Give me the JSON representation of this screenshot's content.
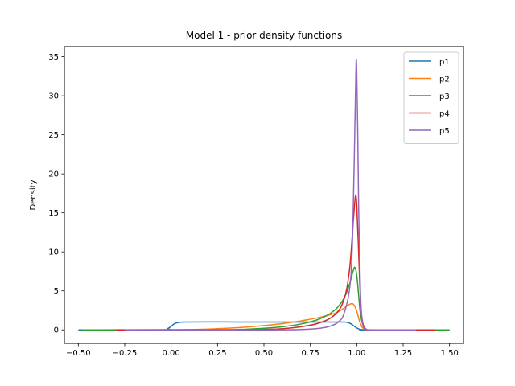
{
  "chart_data": {
    "type": "line",
    "title": "Model 1 - prior density functions",
    "xlabel": "",
    "ylabel": "Density",
    "xlim": [
      -0.575,
      1.575
    ],
    "ylim": [
      -1.73,
      36.3
    ],
    "xticks": [
      -0.5,
      -0.25,
      0.0,
      0.25,
      0.5,
      0.75,
      1.0,
      1.25,
      1.5
    ],
    "xtick_labels": [
      "−0.50",
      "−0.25",
      "0.00",
      "0.25",
      "0.50",
      "0.75",
      "1.00",
      "1.25",
      "1.50"
    ],
    "yticks": [
      0,
      5,
      10,
      15,
      20,
      25,
      30,
      35
    ],
    "ytick_labels": [
      "0",
      "5",
      "10",
      "15",
      "20",
      "25",
      "30",
      "35"
    ],
    "grid": false,
    "legend_position": "top-right",
    "series": [
      {
        "name": "p1",
        "color": "#1f77b4",
        "points": [
          [
            -0.5,
            0.0
          ],
          [
            -0.05,
            0.0
          ],
          [
            -0.02,
            0.15
          ],
          [
            0.0,
            0.45
          ],
          [
            0.02,
            0.82
          ],
          [
            0.05,
            0.98
          ],
          [
            0.1,
            1.0
          ],
          [
            0.2,
            1.02
          ],
          [
            0.3,
            1.01
          ],
          [
            0.4,
            1.0
          ],
          [
            0.5,
            1.0
          ],
          [
            0.6,
            1.0
          ],
          [
            0.7,
            1.0
          ],
          [
            0.8,
            1.0
          ],
          [
            0.9,
            1.0
          ],
          [
            0.93,
            1.0
          ],
          [
            0.95,
            0.95
          ],
          [
            0.97,
            0.75
          ],
          [
            0.99,
            0.4
          ],
          [
            1.01,
            0.12
          ],
          [
            1.03,
            0.02
          ],
          [
            1.06,
            0.0
          ],
          [
            1.5,
            0.0
          ]
        ]
      },
      {
        "name": "p2",
        "color": "#ff7f0e",
        "points": [
          [
            -0.46,
            0.0
          ],
          [
            0.0,
            0.02
          ],
          [
            0.2,
            0.1
          ],
          [
            0.4,
            0.35
          ],
          [
            0.5,
            0.55
          ],
          [
            0.6,
            0.8
          ],
          [
            0.7,
            1.15
          ],
          [
            0.8,
            1.6
          ],
          [
            0.88,
            2.1
          ],
          [
            0.92,
            2.6
          ],
          [
            0.95,
            3.1
          ],
          [
            0.97,
            3.35
          ],
          [
            0.985,
            3.2
          ],
          [
            1.0,
            2.4
          ],
          [
            1.015,
            1.1
          ],
          [
            1.03,
            0.3
          ],
          [
            1.05,
            0.05
          ],
          [
            1.1,
            0.0
          ],
          [
            1.46,
            0.0
          ]
        ]
      },
      {
        "name": "p3",
        "color": "#2ca02c",
        "points": [
          [
            -0.48,
            0.0
          ],
          [
            0.2,
            0.02
          ],
          [
            0.4,
            0.08
          ],
          [
            0.5,
            0.2
          ],
          [
            0.6,
            0.4
          ],
          [
            0.7,
            0.75
          ],
          [
            0.8,
            1.4
          ],
          [
            0.88,
            2.5
          ],
          [
            0.93,
            4.0
          ],
          [
            0.96,
            5.8
          ],
          [
            0.98,
            7.5
          ],
          [
            0.99,
            8.0
          ],
          [
            1.0,
            7.0
          ],
          [
            1.01,
            4.5
          ],
          [
            1.02,
            2.0
          ],
          [
            1.035,
            0.5
          ],
          [
            1.05,
            0.1
          ],
          [
            1.1,
            0.0
          ],
          [
            1.5,
            0.0
          ]
        ]
      },
      {
        "name": "p4",
        "color": "#d62728",
        "points": [
          [
            -0.3,
            0.0
          ],
          [
            0.3,
            0.0
          ],
          [
            0.5,
            0.05
          ],
          [
            0.6,
            0.15
          ],
          [
            0.7,
            0.4
          ],
          [
            0.8,
            0.9
          ],
          [
            0.88,
            1.9
          ],
          [
            0.93,
            3.8
          ],
          [
            0.96,
            7.5
          ],
          [
            0.98,
            13.5
          ],
          [
            0.99,
            16.5
          ],
          [
            0.995,
            17.2
          ],
          [
            1.0,
            16.0
          ],
          [
            1.01,
            10.0
          ],
          [
            1.02,
            4.0
          ],
          [
            1.03,
            1.2
          ],
          [
            1.05,
            0.1
          ],
          [
            1.1,
            0.0
          ],
          [
            1.42,
            0.0
          ]
        ]
      },
      {
        "name": "p5",
        "color": "#9467bd",
        "points": [
          [
            -0.25,
            0.0
          ],
          [
            0.5,
            0.0
          ],
          [
            0.7,
            0.05
          ],
          [
            0.8,
            0.2
          ],
          [
            0.86,
            0.5
          ],
          [
            0.9,
            1.0
          ],
          [
            0.93,
            2.0
          ],
          [
            0.96,
            5.0
          ],
          [
            0.975,
            10.0
          ],
          [
            0.985,
            20.0
          ],
          [
            0.993,
            30.0
          ],
          [
            0.997,
            34.5
          ],
          [
            1.0,
            33.0
          ],
          [
            1.005,
            26.0
          ],
          [
            1.01,
            16.0
          ],
          [
            1.02,
            5.0
          ],
          [
            1.03,
            1.0
          ],
          [
            1.05,
            0.1
          ],
          [
            1.1,
            0.0
          ],
          [
            1.32,
            0.0
          ]
        ]
      }
    ]
  }
}
